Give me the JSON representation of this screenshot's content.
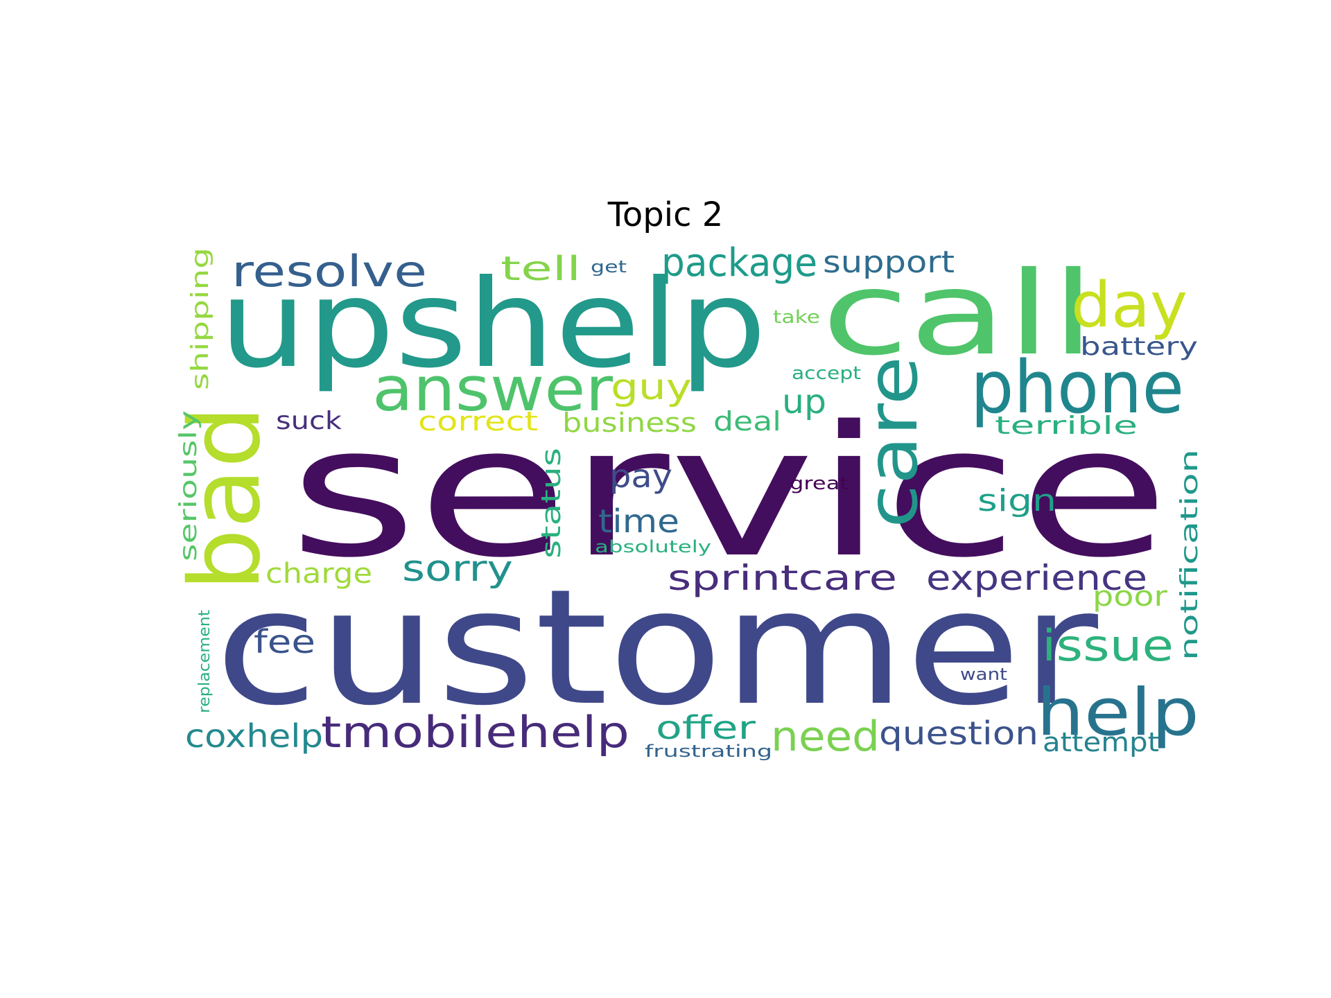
{
  "chart_data": {
    "type": "wordcloud",
    "title": "Topic 2",
    "words": [
      {
        "text": "service",
        "color": "#440e5e"
      },
      {
        "text": "customer",
        "color": "#3f4889"
      },
      {
        "text": "upshelp",
        "color": "#22998a"
      },
      {
        "text": "call",
        "color": "#4fc46a"
      },
      {
        "text": "bad",
        "color": "#b4dd2c"
      },
      {
        "text": "care",
        "color": "#22958b"
      },
      {
        "text": "phone",
        "color": "#20868d"
      },
      {
        "text": "help",
        "color": "#27738e"
      },
      {
        "text": "answer",
        "color": "#4ec36b"
      },
      {
        "text": "day",
        "color": "#c8e020"
      },
      {
        "text": "tmobilehelp",
        "color": "#472b7a"
      },
      {
        "text": "resolve",
        "color": "#355f8d"
      },
      {
        "text": "package",
        "color": "#1e9b8a"
      },
      {
        "text": "sprintcare",
        "color": "#472d7b"
      },
      {
        "text": "experience",
        "color": "#453581"
      },
      {
        "text": "need",
        "color": "#7ad151"
      },
      {
        "text": "issue",
        "color": "#2db27d"
      },
      {
        "text": "support",
        "color": "#2f6c8e"
      },
      {
        "text": "question",
        "color": "#3b528b"
      },
      {
        "text": "sorry",
        "color": "#21918c"
      },
      {
        "text": "tell",
        "color": "#84d44b"
      },
      {
        "text": "guy",
        "color": "#bade28"
      },
      {
        "text": "coxhelp",
        "color": "#23898e"
      },
      {
        "text": "offer",
        "color": "#20a386"
      },
      {
        "text": "up",
        "color": "#29af7f"
      },
      {
        "text": "pay",
        "color": "#3e4c8a"
      },
      {
        "text": "time",
        "color": "#31688e"
      },
      {
        "text": "fee",
        "color": "#3a538b"
      },
      {
        "text": "sign",
        "color": "#1fa088"
      },
      {
        "text": "charge",
        "color": "#a0da39"
      },
      {
        "text": "shipping",
        "color": "#95d840"
      },
      {
        "text": "seriously",
        "color": "#56c667"
      },
      {
        "text": "notification",
        "color": "#1f988b"
      },
      {
        "text": "status",
        "color": "#2ab07f"
      },
      {
        "text": "battery",
        "color": "#39568c"
      },
      {
        "text": "terrible",
        "color": "#2ab07f"
      },
      {
        "text": "business",
        "color": "#90d743"
      },
      {
        "text": "deal",
        "color": "#3bbb75"
      },
      {
        "text": "correct",
        "color": "#e2e418"
      },
      {
        "text": "suck",
        "color": "#472f7d"
      },
      {
        "text": "poor",
        "color": "#8bd646"
      },
      {
        "text": "attempt",
        "color": "#25838e"
      },
      {
        "text": "replacement",
        "color": "#2ab07f"
      },
      {
        "text": "absolutely",
        "color": "#2ab07f"
      },
      {
        "text": "frustrating",
        "color": "#33638d"
      },
      {
        "text": "great",
        "color": "#440154"
      },
      {
        "text": "accept",
        "color": "#29af7f"
      },
      {
        "text": "take",
        "color": "#73d056"
      },
      {
        "text": "want",
        "color": "#3e4a89"
      },
      {
        "text": "get",
        "color": "#31688e"
      }
    ]
  }
}
